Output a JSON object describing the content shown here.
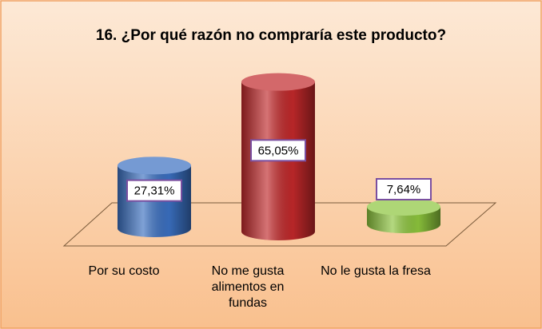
{
  "chart_data": {
    "type": "bar3d",
    "title": "16. ¿Por qué razón no compraría este producto?",
    "categories": [
      "Por su costo",
      "No me gusta alimentos en fundas",
      "No le gusta la fresa"
    ],
    "values": [
      27.31,
      65.05,
      7.64
    ],
    "value_labels": [
      "27,31%",
      "65,05%",
      "7,64%"
    ],
    "colors": [
      "#3a6fc0",
      "#c0282a",
      "#8cc43c"
    ]
  }
}
